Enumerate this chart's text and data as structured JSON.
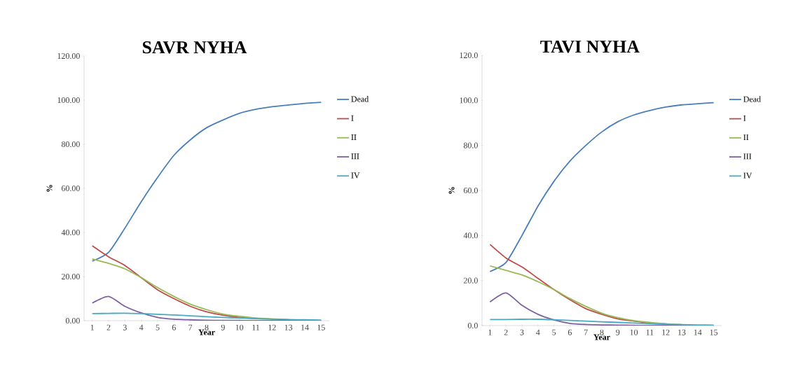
{
  "chart_data": [
    {
      "type": "line",
      "title": "SAVR NYHA",
      "xlabel": "Year",
      "ylabel": "%",
      "categories": [
        "1",
        "2",
        "3",
        "4",
        "5",
        "6",
        "7",
        "8",
        "9",
        "10",
        "11",
        "12",
        "13",
        "14",
        "15"
      ],
      "series": [
        {
          "name": "Dead",
          "color": "#4a7ebb",
          "values": [
            27,
            31,
            42,
            54,
            65,
            75,
            82,
            87.5,
            91,
            94,
            95.8,
            97,
            97.8,
            98.5,
            99
          ]
        },
        {
          "name": "I",
          "color": "#be4b48",
          "values": [
            34,
            29,
            25,
            19.5,
            14,
            10,
            6.5,
            4,
            2.5,
            1.5,
            1,
            null,
            null,
            null,
            null
          ]
        },
        {
          "name": "II",
          "color": "#98b954",
          "values": [
            28,
            26,
            23.5,
            19.5,
            15,
            11,
            7.5,
            5,
            3,
            2,
            1.2,
            0.8,
            0.5,
            null,
            null
          ]
        },
        {
          "name": "III",
          "color": "#7d60a0",
          "values": [
            8,
            11,
            6.5,
            3.5,
            1.5,
            0.7,
            0.4,
            0.2,
            0.1,
            0.1,
            0,
            0,
            0,
            0,
            0
          ]
        },
        {
          "name": "IV",
          "color": "#46aac5",
          "values": [
            3.2,
            3.3,
            3.4,
            3.2,
            2.9,
            2.6,
            2.2,
            1.8,
            1.5,
            1.2,
            0.9,
            0.7,
            0.5,
            0.4,
            0.3
          ]
        }
      ],
      "ylim": [
        0,
        120
      ],
      "yticks": [
        {
          "value": 0,
          "label": "0.00"
        },
        {
          "value": 20,
          "label": "20.00"
        },
        {
          "value": 40,
          "label": "40.00"
        },
        {
          "value": 60,
          "label": "60.00"
        },
        {
          "value": 80,
          "label": "80.00"
        },
        {
          "value": 100,
          "label": "100.00"
        },
        {
          "value": 120,
          "label": "120.00"
        }
      ],
      "legend": "right",
      "marker": "none",
      "line_style": "solid"
    },
    {
      "type": "line",
      "title": "TAVI NYHA",
      "xlabel": "Year",
      "ylabel": "%",
      "categories": [
        "1",
        "2",
        "3",
        "4",
        "5",
        "6",
        "7",
        "8",
        "9",
        "10",
        "11",
        "12",
        "13",
        "14",
        "15"
      ],
      "series": [
        {
          "name": "Dead",
          "color": "#4a7ebb",
          "values": [
            24,
            28,
            40,
            53,
            64,
            73,
            80,
            86,
            90.5,
            93.5,
            95.5,
            97,
            98,
            98.5,
            99
          ]
        },
        {
          "name": "I",
          "color": "#be4b48",
          "values": [
            36,
            30,
            26,
            21,
            16,
            11.5,
            7.5,
            5,
            3,
            2,
            1.2,
            0.7,
            null,
            null,
            null
          ]
        },
        {
          "name": "II",
          "color": "#98b954",
          "values": [
            26.5,
            24.5,
            22.5,
            19.5,
            16,
            12,
            8.5,
            5.5,
            3.5,
            2.2,
            1.4,
            0.8,
            0.5,
            null,
            null
          ]
        },
        {
          "name": "III",
          "color": "#7d60a0",
          "values": [
            10.5,
            14.5,
            9,
            5,
            2.5,
            1,
            0.5,
            0.3,
            0.2,
            0.1,
            0,
            0,
            0,
            0,
            0
          ]
        },
        {
          "name": "IV",
          "color": "#46aac5",
          "values": [
            2.7,
            2.7,
            2.8,
            2.8,
            2.6,
            2.3,
            2,
            1.7,
            1.4,
            1.1,
            0.8,
            0.6,
            0.4,
            0.3,
            0.2
          ]
        }
      ],
      "ylim": [
        0,
        120
      ],
      "yticks": [
        {
          "value": 0,
          "label": "0.0"
        },
        {
          "value": 20,
          "label": "20.0"
        },
        {
          "value": 40,
          "label": "40.0"
        },
        {
          "value": 60,
          "label": "60.0"
        },
        {
          "value": 80,
          "label": "80.0"
        },
        {
          "value": 100,
          "label": "100.0"
        },
        {
          "value": 120,
          "label": "120.0"
        }
      ],
      "legend": "right",
      "marker": "none",
      "line_style": "solid"
    }
  ]
}
